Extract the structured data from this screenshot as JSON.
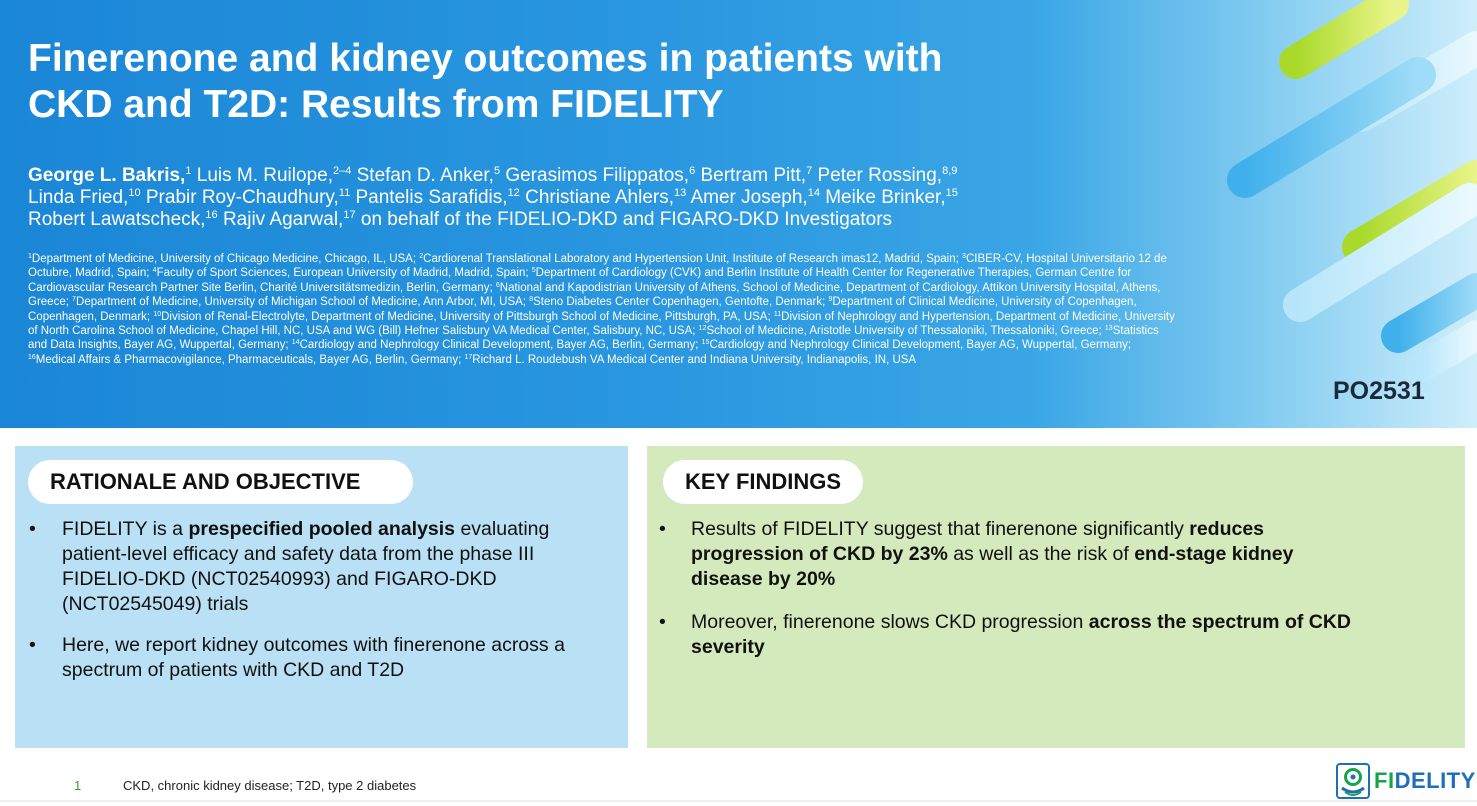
{
  "header": {
    "title_lines": [
      "Finerenone and kidney outcomes in patients with",
      "CKD and T2D: Results from FIDELITY"
    ],
    "authors": [
      {
        "name": "George L. Bakris,",
        "sup": "1",
        "lead": true
      },
      {
        "name": " Luis M. Ruilope,",
        "sup": "2–4"
      },
      {
        "name": " Stefan D. Anker,",
        "sup": "5"
      },
      {
        "name": " Gerasimos Filippatos,",
        "sup": "6"
      },
      {
        "name": " Bertram Pitt,",
        "sup": "7"
      },
      {
        "name": " Peter Rossing,",
        "sup": "8,9",
        "break_after": true
      },
      {
        "name": "Linda Fried,",
        "sup": "10"
      },
      {
        "name": " Prabir Roy-Chaudhury,",
        "sup": "11"
      },
      {
        "name": " Pantelis Sarafidis,",
        "sup": "12"
      },
      {
        "name": " Christiane Ahlers,",
        "sup": "13"
      },
      {
        "name": " Amer Joseph,",
        "sup": "14"
      },
      {
        "name": " Meike Brinker,",
        "sup": "15",
        "break_after": true
      },
      {
        "name": "Robert Lawatscheck,",
        "sup": "16"
      },
      {
        "name": " Rajiv Agarwal,",
        "sup": "17"
      },
      {
        "name": " on behalf of the FIDELIO-DKD and FIGARO-DKD Investigators",
        "sup": ""
      }
    ],
    "affiliations": [
      {
        "sup": "1",
        "text": "Department of Medicine, University of Chicago Medicine, Chicago, IL, USA; "
      },
      {
        "sup": "2",
        "text": "Cardiorenal Translational Laboratory and Hypertension Unit, Institute of Research imas12, Madrid, Spain; "
      },
      {
        "sup": "3",
        "text": "CIBER-CV, Hospital Universitario 12 de Octubre, Madrid, Spain; "
      },
      {
        "sup": "4",
        "text": "Faculty of Sport Sciences, European University of Madrid, Madrid, Spain; "
      },
      {
        "sup": "5",
        "text": "Department of Cardiology (CVK) and Berlin Institute of Health Center for Regenerative Therapies, German Centre for Cardiovascular Research Partner Site Berlin, Charité Universitätsmedizin, Berlin, Germany; "
      },
      {
        "sup": "6",
        "text": "National and Kapodistrian University of Athens, School of Medicine, Department of Cardiology, Attikon University Hospital, Athens, Greece; "
      },
      {
        "sup": "7",
        "text": "Department of Medicine, University of Michigan School of Medicine, Ann Arbor, MI, USA; "
      },
      {
        "sup": "8",
        "text": "Steno Diabetes Center Copenhagen, Gentofte, Denmark; "
      },
      {
        "sup": "9",
        "text": "Department of Clinical Medicine, University of Copenhagen, Copenhagen, Denmark; "
      },
      {
        "sup": "10",
        "text": "Division of Renal-Electrolyte, Department of Medicine, University of Pittsburgh School of Medicine, Pittsburgh, PA, USA; "
      },
      {
        "sup": "11",
        "text": "Division of Nephrology and Hypertension, Department of Medicine, University of North Carolina School of Medicine, Chapel Hill, NC, USA and WG (Bill) Hefner Salisbury VA Medical Center, Salisbury, NC, USA; "
      },
      {
        "sup": "12",
        "text": "School of Medicine, Aristotle University of Thessaloniki, Thessaloniki, Greece; "
      },
      {
        "sup": "13",
        "text": "Statistics and Data Insights, Bayer AG, Wuppertal, Germany; "
      },
      {
        "sup": "14",
        "text": "Cardiology and Nephrology Clinical Development, Bayer AG, Berlin, Germany; "
      },
      {
        "sup": "15",
        "text": "Cardiology and Nephrology Clinical Development, Bayer AG, Wuppertal, Germany; "
      },
      {
        "sup": "16",
        "text": "Medical Affairs & Pharmacovigilance, Pharmaceuticals, Bayer AG, Berlin, Germany; "
      },
      {
        "sup": "17",
        "text": "Richard L. Roudebush VA Medical Center and Indiana University, Indianapolis, IN, USA"
      }
    ],
    "poster_id": "PO2531"
  },
  "rationale": {
    "heading": "RATIONALE AND OBJECTIVE",
    "bullets": [
      [
        {
          "t": "FIDELITY is a "
        },
        {
          "t": "prespecified pooled analysis",
          "b": true
        },
        {
          "t": " evaluating patient-level efficacy and safety data from the phase III FIDELIO-DKD (NCT02540993) and FIGARO-DKD (NCT02545049) trials"
        }
      ],
      [
        {
          "t": "Here, we report kidney outcomes with finerenone across a spectrum of patients with CKD and T2D"
        }
      ]
    ]
  },
  "key_findings": {
    "heading": "KEY FINDINGS",
    "bullets": [
      [
        {
          "t": "Results of FIDELITY suggest that finerenone significantly "
        },
        {
          "t": "reduces progression of CKD by 23%",
          "b": true
        },
        {
          "t": " as well as the risk of "
        },
        {
          "t": "end-stage kidney disease by 20%",
          "b": true
        }
      ],
      [
        {
          "t": "Moreover, finerenone slows CKD progression "
        },
        {
          "t": "across the spectrum of CKD severity",
          "b": true
        }
      ]
    ]
  },
  "footer": {
    "page_number": "1",
    "abbreviations": "CKD, chronic kidney disease; T2D, type 2 diabetes",
    "logo_fi": "FI",
    "logo_rest": "DELITY"
  },
  "colors": {
    "header_blue": "#1a86d6",
    "rationale_bg": "#b9e0f4",
    "findings_bg": "#d4eabc",
    "logo_green": "#17a34a",
    "logo_blue": "#1e6fb8"
  }
}
